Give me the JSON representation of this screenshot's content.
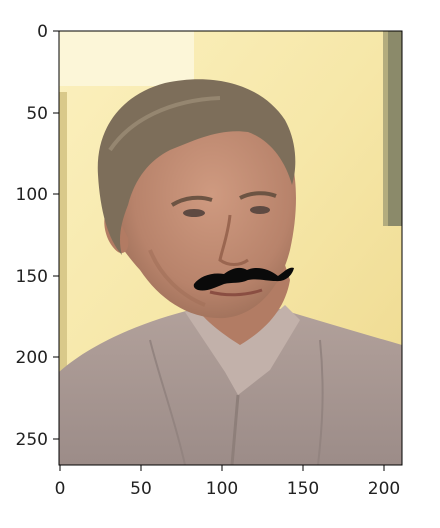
{
  "figure": {
    "type": "image",
    "xlim": [
      0,
      210
    ],
    "ylim": [
      0,
      268
    ],
    "y_axis_inverted": true,
    "x_ticks": [
      "0",
      "50",
      "100",
      "150",
      "200"
    ],
    "y_ticks": [
      "0",
      "50",
      "100",
      "150",
      "200",
      "250"
    ],
    "overlay": "mustache",
    "colors": {
      "background_wall": "#F5E6A6",
      "shirt": "#A89894",
      "skin": "#C08B72",
      "hair": "#7A6A55",
      "mustache": "#0A0A0A",
      "axis": "#000000"
    }
  }
}
